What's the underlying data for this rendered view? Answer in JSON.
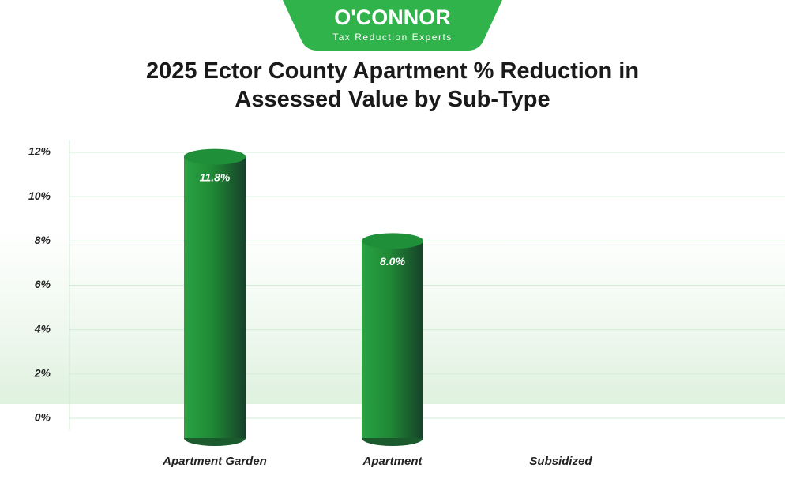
{
  "logo": {
    "name": "O'CONNOR",
    "tagline": "Tax Reduction Experts"
  },
  "chart_data": {
    "type": "bar",
    "title": "2025 Ector County Apartment % Reduction in Assessed Value by Sub-Type",
    "categories": [
      "Apartment Garden",
      "Apartment",
      "Subsidized"
    ],
    "values": [
      11.8,
      8.0,
      null
    ],
    "value_labels": [
      "11.8%",
      "8.0%",
      null
    ],
    "color": "#1f8f3a",
    "ylim": [
      0,
      12
    ],
    "yticks": [
      {
        "value": 0,
        "label": "0%"
      },
      {
        "value": 2,
        "label": "2%"
      },
      {
        "value": 4,
        "label": "4%"
      },
      {
        "value": 6,
        "label": "6%"
      },
      {
        "value": 8,
        "label": "8%"
      },
      {
        "value": 10,
        "label": "10%"
      },
      {
        "value": 12,
        "label": "12%"
      }
    ],
    "grid": true
  }
}
